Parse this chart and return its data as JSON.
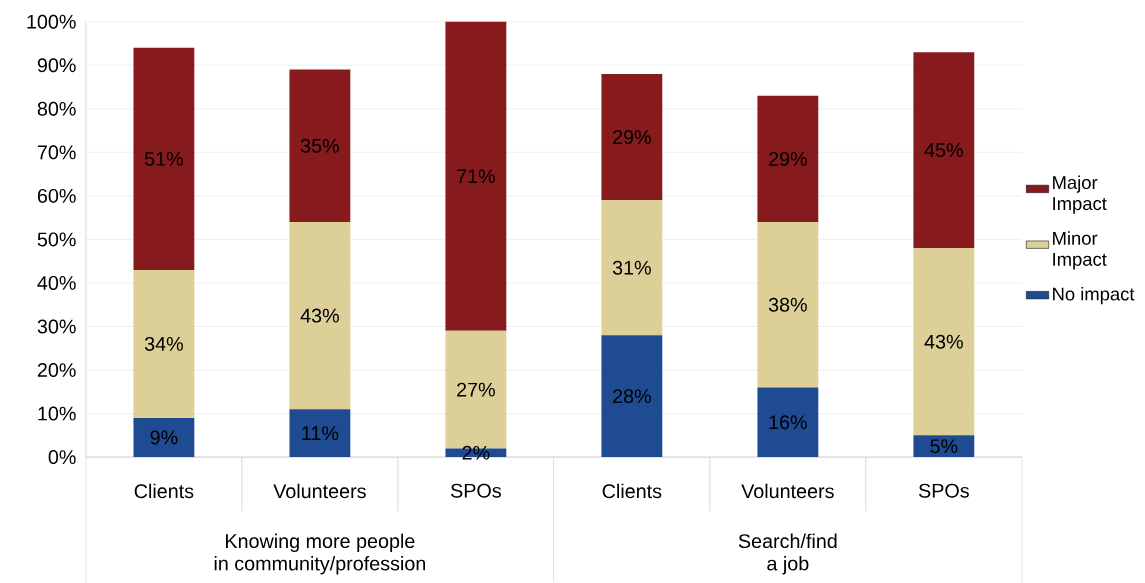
{
  "chart_data": {
    "type": "bar",
    "stacked": true,
    "categories": [
      "Clients",
      "Volunteers",
      "SPOs",
      "Clients",
      "Volunteers",
      "SPOs"
    ],
    "series": [
      {
        "name": "No impact",
        "color": "#1f4b93",
        "values": [
          9,
          11,
          2,
          28,
          16,
          5
        ],
        "value_labels": [
          "9%",
          "11%",
          "2%",
          "28%",
          "16%",
          "5%"
        ]
      },
      {
        "name": "Minor Impact",
        "color": "#ddcf98",
        "values": [
          34,
          43,
          27,
          31,
          38,
          43
        ],
        "value_labels": [
          "34%",
          "43%",
          "27%",
          "31%",
          "38%",
          "43%"
        ]
      },
      {
        "name": "Major Impact",
        "color": "#861a1c",
        "values": [
          51,
          35,
          71,
          29,
          29,
          45
        ],
        "value_labels": [
          "51%",
          "35%",
          "71%",
          "29%",
          "29%",
          "45%"
        ]
      }
    ],
    "ylim": [
      0,
      100
    ],
    "yticks": [
      {
        "value": 0,
        "label": "0%"
      },
      {
        "value": 10,
        "label": "10%"
      },
      {
        "value": 20,
        "label": "20%"
      },
      {
        "value": 30,
        "label": "30%"
      },
      {
        "value": 40,
        "label": "40%"
      },
      {
        "value": 50,
        "label": "50%"
      },
      {
        "value": 60,
        "label": "60%"
      },
      {
        "value": 70,
        "label": "70%"
      },
      {
        "value": 80,
        "label": "80%"
      },
      {
        "value": 90,
        "label": "90%"
      },
      {
        "value": 100,
        "label": "100%"
      }
    ],
    "grid": "y",
    "legend": "right",
    "annotations": [
      "Knowing more people",
      "in community/profession",
      "Search/find",
      "a job"
    ]
  }
}
